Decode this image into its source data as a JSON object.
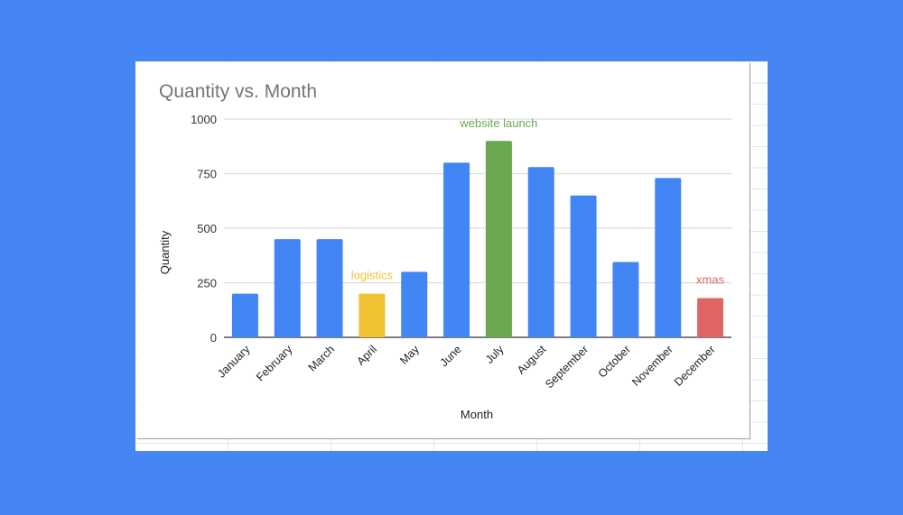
{
  "chart_data": {
    "type": "bar",
    "title": "Quantity vs. Month",
    "xlabel": "Month",
    "ylabel": "Quantity",
    "ylim": [
      0,
      1000
    ],
    "yticks": [
      0,
      250,
      500,
      750,
      1000
    ],
    "grid": true,
    "legend": "none",
    "categories": [
      "January",
      "February",
      "March",
      "April",
      "May",
      "June",
      "July",
      "August",
      "September",
      "October",
      "November",
      "December"
    ],
    "values": [
      200,
      450,
      450,
      200,
      300,
      800,
      900,
      780,
      650,
      345,
      730,
      180
    ],
    "default_color": "#4285f4",
    "highlights": [
      {
        "category": "April",
        "label": "logistics",
        "color": "#f1c232"
      },
      {
        "category": "July",
        "label": "website launch",
        "color": "#6aa84f"
      },
      {
        "category": "December",
        "label": "xmas",
        "color": "#e06666"
      }
    ]
  }
}
